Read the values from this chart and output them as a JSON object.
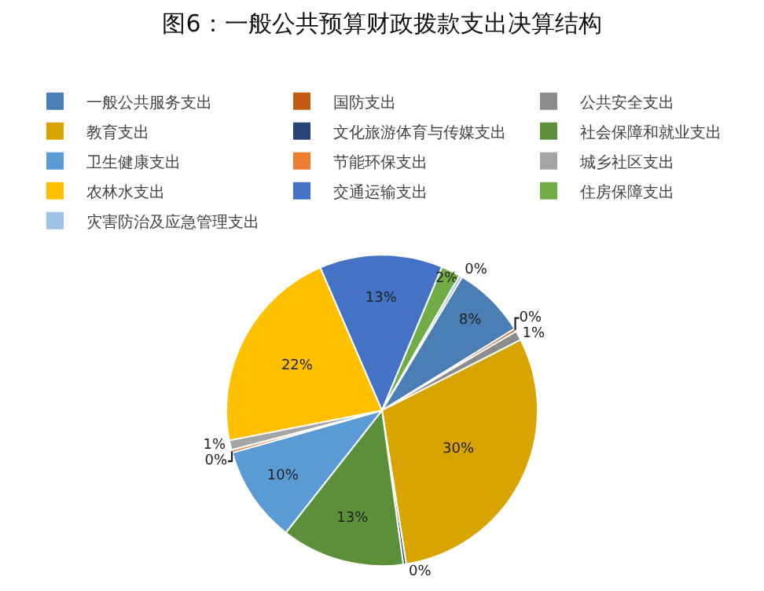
{
  "chart_data": {
    "type": "pie",
    "title": "图6：一般公共预算财政拨款支出决算结构",
    "categories": [
      "一般公共服务支出",
      "国防支出",
      "公共安全支出",
      "教育支出",
      "文化旅游体育与传媒支出",
      "社会保障和就业支出",
      "卫生健康支出",
      "节能环保支出",
      "城乡社区支出",
      "农林水支出",
      "交通运输支出",
      "住房保障支出",
      "灾害防治及应急管理支出"
    ],
    "values": [
      7.6,
      0.3,
      1,
      30,
      0.3,
      12.8,
      10,
      0.3,
      1,
      21.6,
      12.8,
      2,
      0.3
    ],
    "value_labels": [
      "8%",
      "0%",
      "1%",
      "30%",
      "0%",
      "13%",
      "10%",
      "0%",
      "1%",
      "22%",
      "13%",
      "2%",
      "0%"
    ],
    "colors": [
      "#4a7fb5",
      "#c55a11",
      "#8c8c8c",
      "#d9a300",
      "#264478",
      "#5b8f3a",
      "#5b9bd5",
      "#ed7d31",
      "#a5a5a5",
      "#ffc000",
      "#4472c4",
      "#70ad47",
      "#9dc3e6"
    ],
    "legend": "top"
  }
}
